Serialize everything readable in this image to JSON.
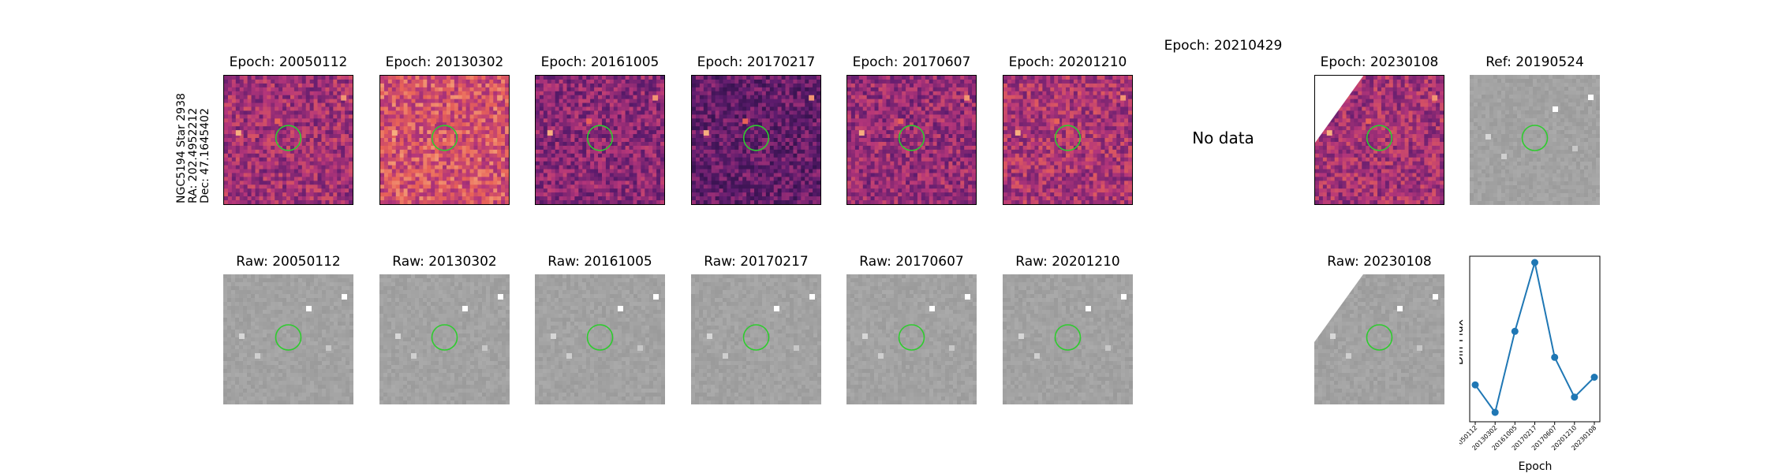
{
  "object": {
    "name": "NGC5194 Star 2938",
    "ra": "RA: 202.4952212",
    "dec": "Dec: 47.1645402"
  },
  "diff_titles": [
    "Epoch: 20050112",
    "Epoch: 20130302",
    "Epoch: 20161005",
    "Epoch: 20170217",
    "Epoch: 20170607",
    "Epoch: 20201210",
    "Epoch: 20210429",
    "Epoch: 20230108",
    "Ref: 20190524"
  ],
  "raw_titles": [
    "Raw: 20050112",
    "Raw: 20130302",
    "Raw: 20161005",
    "Raw: 20170217",
    "Raw: 20170607",
    "Raw: 20201210",
    "Raw: 20230108"
  ],
  "no_data": "No data",
  "colors": {
    "circle": "#2ecc2e",
    "series": "#1f77b4"
  },
  "chart_data": {
    "type": "line",
    "x": [
      "20050112",
      "20130302",
      "20161005",
      "20170217",
      "20170607",
      "20201210",
      "20230108"
    ],
    "values": [
      0.2,
      0.02,
      0.55,
      1.0,
      0.38,
      0.12,
      0.25
    ],
    "xlabel": "Epoch",
    "ylabel": "Diff Flux",
    "yticks": "none",
    "grid": false
  }
}
